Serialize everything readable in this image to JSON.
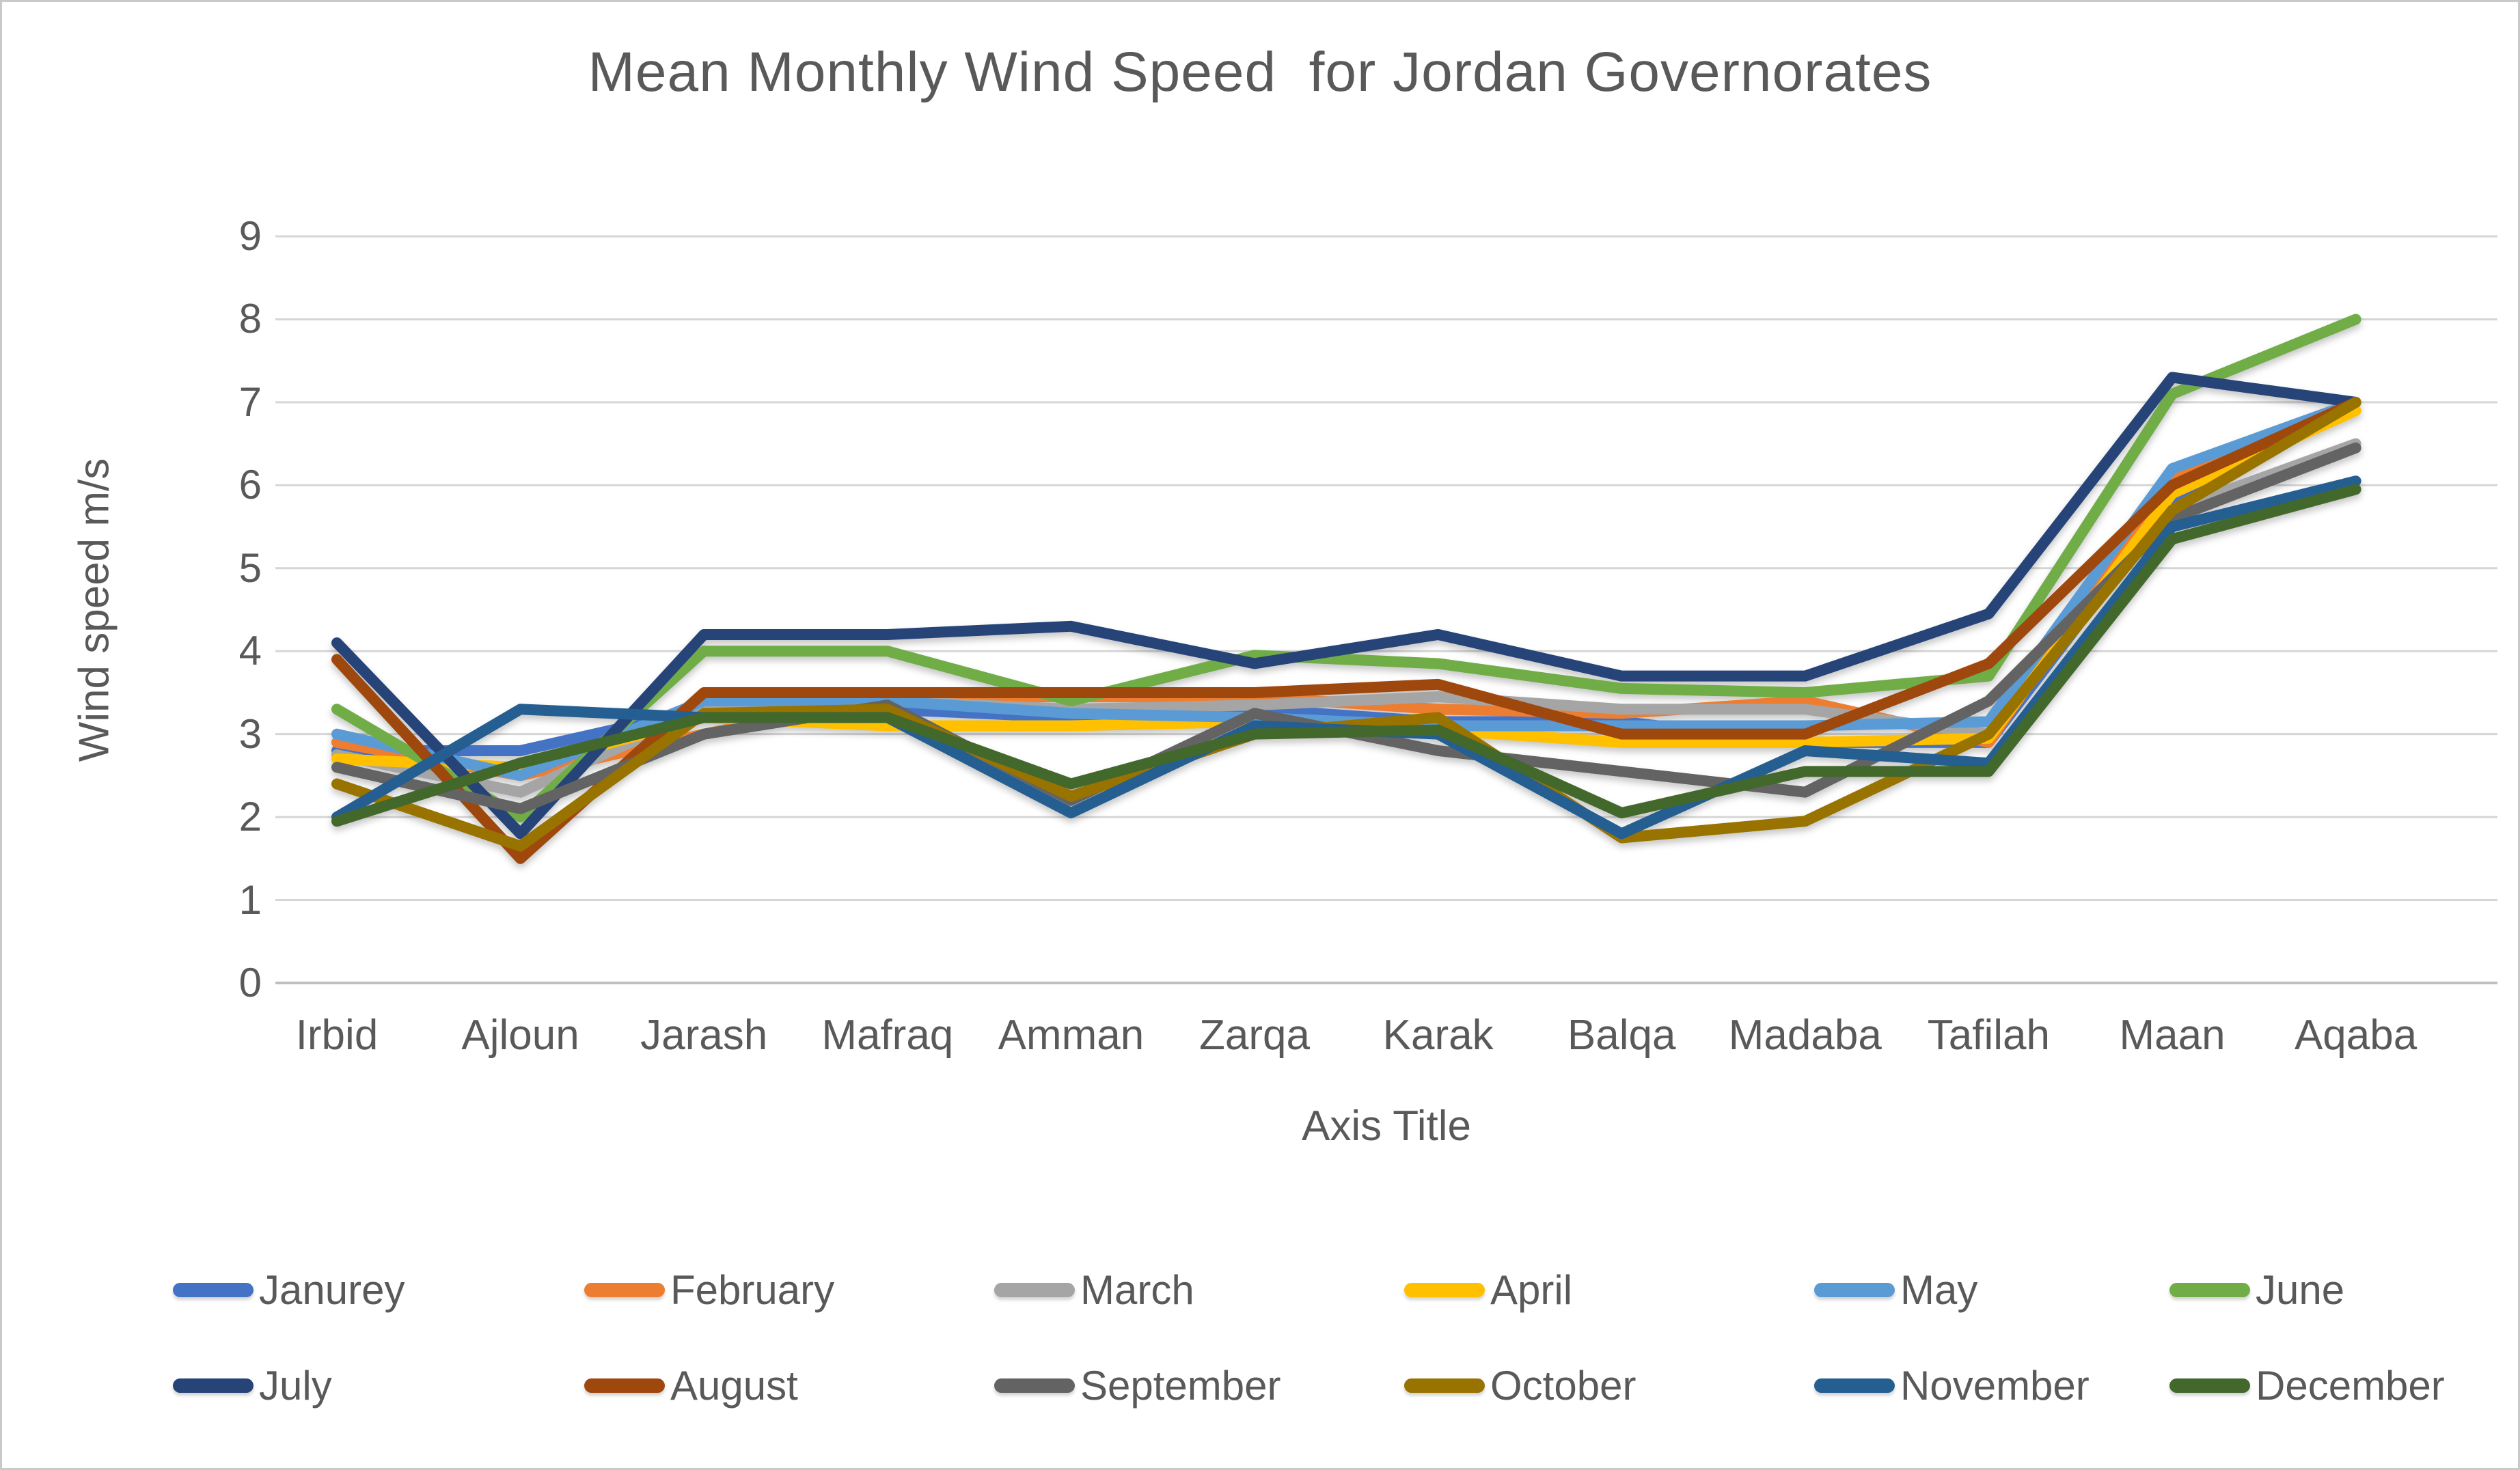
{
  "title": "Mean Monthly Wind Speed  for Jordan Governorates",
  "chart_data": {
    "type": "line",
    "title": "Mean Monthly Wind Speed  for Jordan Governorates",
    "xlabel": "Axis Title",
    "ylabel": "Wind speed m/s",
    "ylim": [
      0,
      9
    ],
    "y_ticks": [
      0,
      1,
      2,
      3,
      4,
      5,
      6,
      7,
      8,
      9
    ],
    "grid": "horizontal",
    "legend_position": "bottom",
    "gridline_color": "#d6d6d6",
    "axis_line_color": "#bfbfbf",
    "categories": [
      "Irbid",
      "Ajloun",
      "Jarash",
      "Mafraq",
      "Amman",
      "Zarqa",
      "Karak",
      "Balqa",
      "Madaba",
      "Tafilah",
      "Maan",
      "Aqaba"
    ],
    "series": [
      {
        "name": "Janurey",
        "color": "#4472C4",
        "values": [
          2.8,
          2.8,
          3.3,
          3.3,
          3.2,
          3.3,
          3.15,
          3.15,
          2.9,
          2.9,
          5.8,
          7.0
        ]
      },
      {
        "name": "February",
        "color": "#ED7D31",
        "values": [
          2.9,
          2.5,
          3.0,
          3.45,
          3.45,
          3.45,
          3.3,
          3.25,
          3.4,
          2.9,
          6.1,
          7.0
        ]
      },
      {
        "name": "March",
        "color": "#A5A5A5",
        "values": [
          2.75,
          2.3,
          3.3,
          3.4,
          3.3,
          3.35,
          3.45,
          3.3,
          3.3,
          3.0,
          5.7,
          6.5
        ]
      },
      {
        "name": "April",
        "color": "#FFC000",
        "values": [
          2.7,
          2.6,
          3.2,
          3.1,
          3.1,
          3.15,
          3.05,
          2.9,
          2.9,
          2.95,
          5.9,
          6.9
        ]
      },
      {
        "name": "May",
        "color": "#5B9BD5",
        "values": [
          3.0,
          2.5,
          3.4,
          3.4,
          3.25,
          3.2,
          3.1,
          3.1,
          3.1,
          3.15,
          6.2,
          7.0
        ]
      },
      {
        "name": "June",
        "color": "#70AD47",
        "values": [
          3.3,
          2.0,
          4.0,
          4.0,
          3.4,
          3.95,
          3.85,
          3.55,
          3.5,
          3.7,
          7.1,
          8.0
        ]
      },
      {
        "name": "July",
        "color": "#264478",
        "values": [
          4.1,
          1.8,
          4.2,
          4.2,
          4.3,
          3.85,
          4.2,
          3.7,
          3.7,
          4.45,
          7.3,
          7.0
        ]
      },
      {
        "name": "August",
        "color": "#9E480E",
        "values": [
          3.9,
          1.5,
          3.5,
          3.5,
          3.5,
          3.5,
          3.6,
          3.0,
          3.0,
          3.85,
          6.0,
          7.0
        ]
      },
      {
        "name": "September",
        "color": "#636363",
        "values": [
          2.6,
          2.1,
          3.0,
          3.35,
          2.2,
          3.25,
          2.8,
          2.55,
          2.3,
          3.4,
          5.6,
          6.45
        ]
      },
      {
        "name": "October",
        "color": "#997300",
        "values": [
          2.4,
          1.65,
          3.25,
          3.3,
          2.25,
          3.0,
          3.2,
          1.75,
          1.95,
          3.0,
          5.7,
          7.0
        ]
      },
      {
        "name": "November",
        "color": "#255E91",
        "values": [
          2.0,
          3.3,
          3.2,
          3.2,
          2.05,
          3.1,
          3.0,
          1.8,
          2.8,
          2.65,
          5.5,
          6.05
        ]
      },
      {
        "name": "December",
        "color": "#43682B",
        "values": [
          1.95,
          2.65,
          3.2,
          3.2,
          2.4,
          3.0,
          3.05,
          2.05,
          2.55,
          2.55,
          5.35,
          5.95
        ]
      }
    ]
  }
}
